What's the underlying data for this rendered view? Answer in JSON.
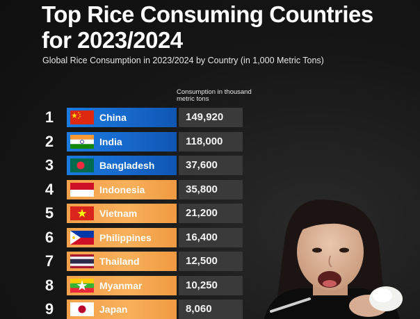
{
  "title": "Top Rice Consuming Countries for 2023/2024",
  "subtitle": "Global Rice Consumption in 2023/2024 by Country (in 1,000 Metric Tons)",
  "column_header": "Consumption in thousand metric tons",
  "colors": {
    "top3_bar": "#1666c8",
    "rest_bar": "#f5a04b",
    "value_box": "#3a3a3a",
    "background": "#161616"
  },
  "chart_data": {
    "type": "table",
    "title": "Top Rice Consuming Countries for 2023/2024",
    "subtitle": "Global Rice Consumption in 2023/2024 by Country (in 1,000 Metric Tons)",
    "value_label": "Consumption in thousand metric tons",
    "rows": [
      {
        "rank": "1",
        "country": "China",
        "value": "149,920",
        "flag": "china-flag-icon"
      },
      {
        "rank": "2",
        "country": "India",
        "value": "118,000",
        "flag": "india-flag-icon"
      },
      {
        "rank": "3",
        "country": "Bangladesh",
        "value": "37,600",
        "flag": "bangladesh-flag-icon"
      },
      {
        "rank": "4",
        "country": "Indonesia",
        "value": "35,800",
        "flag": "indonesia-flag-icon"
      },
      {
        "rank": "5",
        "country": "Vietnam",
        "value": "21,200",
        "flag": "vietnam-flag-icon"
      },
      {
        "rank": "6",
        "country": "Philippines",
        "value": "16,400",
        "flag": "philippines-flag-icon"
      },
      {
        "rank": "7",
        "country": "Thailand",
        "value": "12,500",
        "flag": "thailand-flag-icon"
      },
      {
        "rank": "8",
        "country": "Myanmar",
        "value": "10,250",
        "flag": "myanmar-flag-icon"
      },
      {
        "rank": "9",
        "country": "Japan",
        "value": "8,060",
        "flag": "japan-flag-icon"
      }
    ]
  }
}
